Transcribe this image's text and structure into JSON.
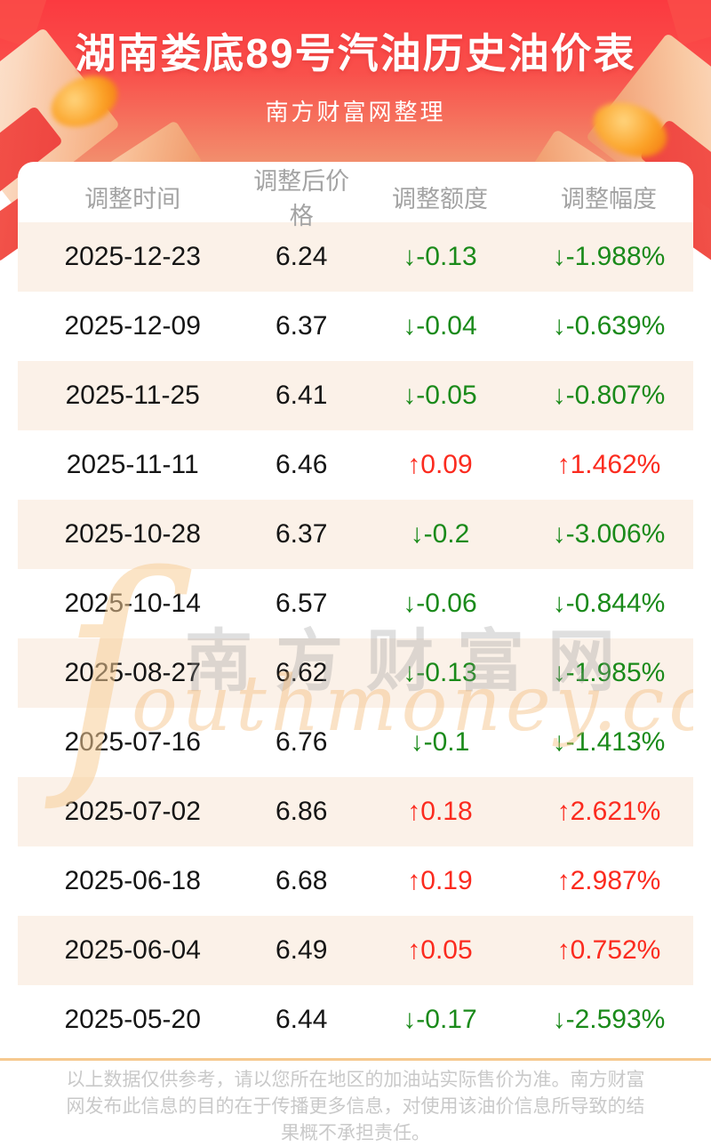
{
  "header": {
    "title": "湖南娄底89号汽油历史油价表",
    "subtitle": "南方财富网整理"
  },
  "table": {
    "columns": [
      "调整时间",
      "调整后价格",
      "调整额度",
      "调整幅度"
    ],
    "rows": [
      {
        "date": "2025-12-23",
        "price": "6.24",
        "change": "↓-0.13",
        "pct": "↓-1.988%",
        "direction": "down"
      },
      {
        "date": "2025-12-09",
        "price": "6.37",
        "change": "↓-0.04",
        "pct": "↓-0.639%",
        "direction": "down"
      },
      {
        "date": "2025-11-25",
        "price": "6.41",
        "change": "↓-0.05",
        "pct": "↓-0.807%",
        "direction": "down"
      },
      {
        "date": "2025-11-11",
        "price": "6.46",
        "change": "↑0.09",
        "pct": "↑1.462%",
        "direction": "up"
      },
      {
        "date": "2025-10-28",
        "price": "6.37",
        "change": "↓-0.2",
        "pct": "↓-3.006%",
        "direction": "down"
      },
      {
        "date": "2025-10-14",
        "price": "6.57",
        "change": "↓-0.06",
        "pct": "↓-0.844%",
        "direction": "down"
      },
      {
        "date": "2025-08-27",
        "price": "6.62",
        "change": "↓-0.13",
        "pct": "↓-1.985%",
        "direction": "down"
      },
      {
        "date": "2025-07-16",
        "price": "6.76",
        "change": "↓-0.1",
        "pct": "↓-1.413%",
        "direction": "down"
      },
      {
        "date": "2025-07-02",
        "price": "6.86",
        "change": "↑0.18",
        "pct": "↑2.621%",
        "direction": "up"
      },
      {
        "date": "2025-06-18",
        "price": "6.68",
        "change": "↑0.19",
        "pct": "↑2.987%",
        "direction": "up"
      },
      {
        "date": "2025-06-04",
        "price": "6.49",
        "change": "↑0.05",
        "pct": "↑0.752%",
        "direction": "up"
      },
      {
        "date": "2025-05-20",
        "price": "6.44",
        "change": "↓-0.17",
        "pct": "↓-2.593%",
        "direction": "down"
      }
    ]
  },
  "watermark": {
    "initial": "ſ",
    "cn": "南方财富网",
    "en": "outhmoney.com"
  },
  "footer": {
    "disclaimer": "以上数据仅供参考，请以您所在地区的加油站实际售价为准。南方财富网发布此信息的目的在于传播更多信息，对使用该油价信息所导致的结果概不承担责任。"
  },
  "colors": {
    "up": "#fb2b1f",
    "down": "#1a8a1a",
    "hero_top": "#fb3a40",
    "hero_bottom": "#f28e6d",
    "row_alt": "#fbf1e8",
    "divider": "#f6c98f"
  }
}
